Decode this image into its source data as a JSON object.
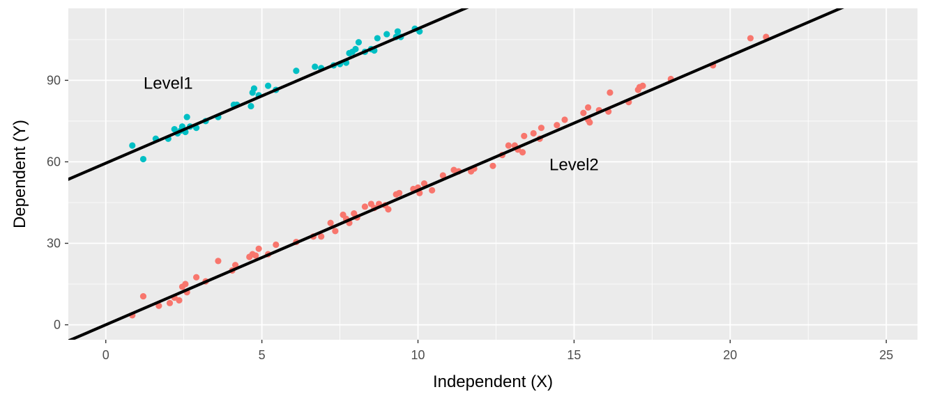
{
  "chart_data": {
    "type": "scatter",
    "title": "",
    "xlabel": "Independent (X)",
    "ylabel": "Dependent (Y)",
    "xlim": [
      -1.2,
      26.0
    ],
    "ylim": [
      -5.5,
      116.5
    ],
    "xticks": [
      0,
      5,
      10,
      15,
      20,
      25
    ],
    "yticks": [
      0,
      30,
      60,
      90
    ],
    "grid": true,
    "legend": "none",
    "colors": {
      "panel_bg": "#EBEBEB",
      "grid_major": "#FFFFFF",
      "level1": "#00BFC4",
      "level2": "#F8766D",
      "fit_line": "#000000"
    },
    "annotations": [
      {
        "text": "Level1",
        "x": 2.0,
        "y": 89
      },
      {
        "text": "Level2",
        "x": 15.0,
        "y": 59
      }
    ],
    "fit_lines": [
      {
        "intercept": 59.5,
        "slope": 4.95
      },
      {
        "intercept": 0.0,
        "slope": 4.95
      }
    ],
    "series": [
      {
        "color": "#00BFC4",
        "points": [
          [
            0.85,
            66.0
          ],
          [
            1.2,
            61.0
          ],
          [
            1.6,
            68.5
          ],
          [
            2.0,
            68.5
          ],
          [
            2.2,
            72.0
          ],
          [
            2.3,
            70.5
          ],
          [
            2.4,
            71.5
          ],
          [
            2.45,
            73.0
          ],
          [
            2.55,
            71.0
          ],
          [
            2.6,
            76.5
          ],
          [
            2.7,
            73.0
          ],
          [
            2.9,
            72.5
          ],
          [
            3.2,
            75.0
          ],
          [
            3.6,
            76.5
          ],
          [
            4.1,
            81.0
          ],
          [
            4.2,
            81.0
          ],
          [
            4.65,
            80.5
          ],
          [
            4.7,
            85.5
          ],
          [
            4.75,
            87.0
          ],
          [
            4.9,
            84.5
          ],
          [
            5.2,
            88.0
          ],
          [
            5.45,
            86.5
          ],
          [
            6.1,
            93.5
          ],
          [
            6.7,
            95.0
          ],
          [
            6.9,
            94.5
          ],
          [
            7.3,
            95.5
          ],
          [
            7.5,
            96.0
          ],
          [
            7.7,
            96.5
          ],
          [
            7.8,
            100.0
          ],
          [
            7.9,
            100.5
          ],
          [
            8.0,
            101.5
          ],
          [
            8.1,
            104.0
          ],
          [
            8.3,
            100.5
          ],
          [
            8.5,
            101.5
          ],
          [
            8.6,
            101.0
          ],
          [
            8.7,
            105.5
          ],
          [
            9.0,
            107.0
          ],
          [
            9.3,
            106.0
          ],
          [
            9.35,
            108.0
          ],
          [
            9.45,
            106.0
          ],
          [
            9.9,
            109.0
          ],
          [
            10.05,
            108.0
          ]
        ]
      },
      {
        "color": "#F8766D",
        "points": [
          [
            0.85,
            3.5
          ],
          [
            1.2,
            10.5
          ],
          [
            1.7,
            7.0
          ],
          [
            2.05,
            8.0
          ],
          [
            2.2,
            10.0
          ],
          [
            2.35,
            9.0
          ],
          [
            2.45,
            14.0
          ],
          [
            2.55,
            15.0
          ],
          [
            2.6,
            12.0
          ],
          [
            2.9,
            17.5
          ],
          [
            3.2,
            16.0
          ],
          [
            3.6,
            23.5
          ],
          [
            4.05,
            20.0
          ],
          [
            4.15,
            22.0
          ],
          [
            4.6,
            25.0
          ],
          [
            4.7,
            26.0
          ],
          [
            4.8,
            25.5
          ],
          [
            4.9,
            28.0
          ],
          [
            5.2,
            26.0
          ],
          [
            5.45,
            29.5
          ],
          [
            6.1,
            30.5
          ],
          [
            6.65,
            32.5
          ],
          [
            6.9,
            32.5
          ],
          [
            7.2,
            37.5
          ],
          [
            7.35,
            34.5
          ],
          [
            7.6,
            40.5
          ],
          [
            7.7,
            39.0
          ],
          [
            7.8,
            37.5
          ],
          [
            7.95,
            41.0
          ],
          [
            8.05,
            39.5
          ],
          [
            8.3,
            43.5
          ],
          [
            8.5,
            44.5
          ],
          [
            8.6,
            43.0
          ],
          [
            8.75,
            44.5
          ],
          [
            8.95,
            44.0
          ],
          [
            9.05,
            42.5
          ],
          [
            9.3,
            48.0
          ],
          [
            9.4,
            48.5
          ],
          [
            9.85,
            50.0
          ],
          [
            10.0,
            50.5
          ],
          [
            10.05,
            48.5
          ],
          [
            10.2,
            52.0
          ],
          [
            10.45,
            49.5
          ],
          [
            10.8,
            55.0
          ],
          [
            11.15,
            57.0
          ],
          [
            11.3,
            56.5
          ],
          [
            11.7,
            56.5
          ],
          [
            11.8,
            57.5
          ],
          [
            12.4,
            58.5
          ],
          [
            12.7,
            62.5
          ],
          [
            12.9,
            66.0
          ],
          [
            13.1,
            66.0
          ],
          [
            13.2,
            64.5
          ],
          [
            13.35,
            63.5
          ],
          [
            13.4,
            69.5
          ],
          [
            13.7,
            70.5
          ],
          [
            13.9,
            68.5
          ],
          [
            13.95,
            72.5
          ],
          [
            14.45,
            73.5
          ],
          [
            14.7,
            75.5
          ],
          [
            15.3,
            78.0
          ],
          [
            15.45,
            75.5
          ],
          [
            15.45,
            80.0
          ],
          [
            15.5,
            74.5
          ],
          [
            15.8,
            79.0
          ],
          [
            16.1,
            78.5
          ],
          [
            16.15,
            85.5
          ],
          [
            16.75,
            82.0
          ],
          [
            17.05,
            86.5
          ],
          [
            17.1,
            87.5
          ],
          [
            17.2,
            88.0
          ],
          [
            18.1,
            90.5
          ],
          [
            19.45,
            95.5
          ],
          [
            20.65,
            105.5
          ],
          [
            21.15,
            106.0
          ]
        ]
      }
    ]
  }
}
